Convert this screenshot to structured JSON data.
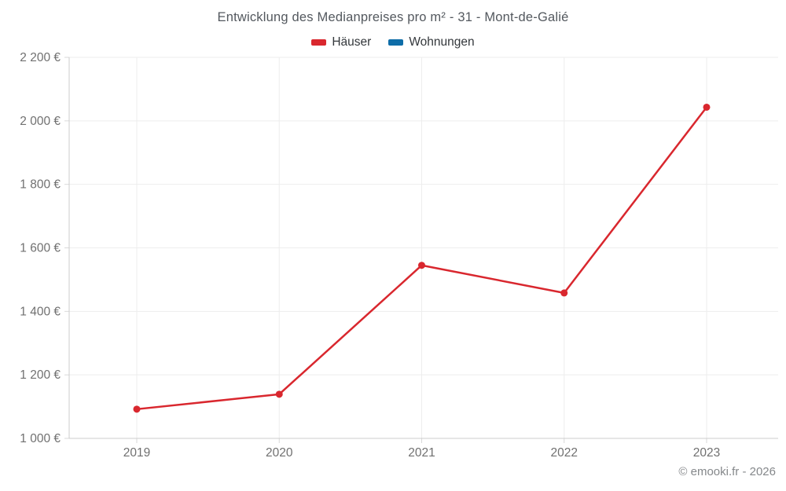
{
  "page": {
    "watermark": "© emooki.fr - 2026"
  },
  "legend": [
    {
      "label": "Häuser",
      "color": "#d9272e"
    },
    {
      "label": "Wohnungen",
      "color": "#0e6da8"
    }
  ],
  "colors": {
    "series_hauser": "#d9272e",
    "series_wohnungen": "#0e6da8",
    "grid": "#ededed",
    "axis": "#cdcdcd",
    "tick": "#d9d9d9",
    "axis_label": "#707070",
    "title": "#53585e",
    "watermark": "#85888b"
  },
  "chart_data": {
    "type": "line",
    "title": "Entwicklung des Medianpreises pro m² - 31 - Mont-de-Galié",
    "xlabel": "",
    "ylabel": "",
    "categories": [
      "2019",
      "2020",
      "2021",
      "2022",
      "2023"
    ],
    "series": [
      {
        "name": "Häuser",
        "color": "#d9272e",
        "values": [
          1092,
          1139,
          1545,
          1458,
          2043
        ]
      },
      {
        "name": "Wohnungen",
        "color": "#0e6da8",
        "values": []
      }
    ],
    "ylim": [
      1000,
      2200
    ],
    "yticks": [
      1000,
      1200,
      1400,
      1600,
      1800,
      2000,
      2200
    ],
    "ytick_labels": [
      "1 000 €",
      "1 200 €",
      "1 400 €",
      "1 600 €",
      "1 800 €",
      "2 000 €",
      "2 200 €"
    ],
    "grid": true,
    "legend_position": "top"
  }
}
